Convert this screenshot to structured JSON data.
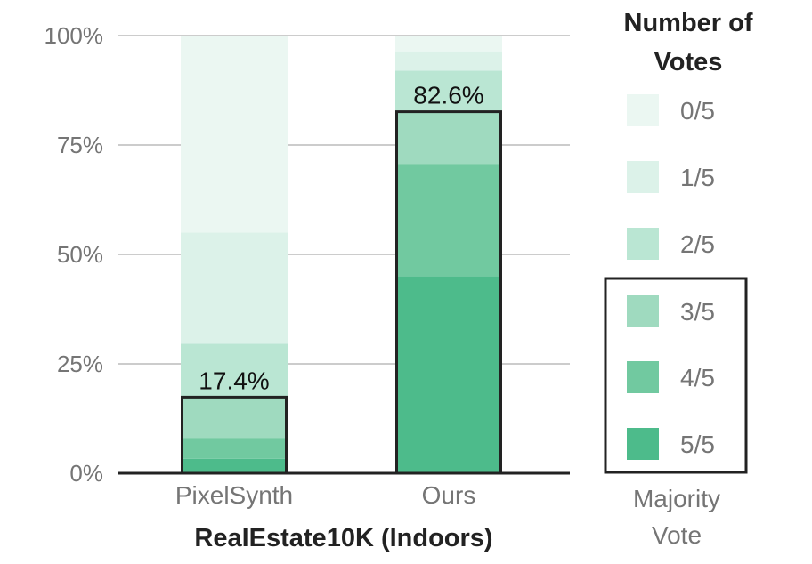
{
  "chart_data": {
    "type": "bar",
    "stacked": true,
    "title": "",
    "xlabel": "RealEstate10K (Indoors)",
    "ylabel": "",
    "ylim": [
      0,
      100
    ],
    "yticks": [
      "0%",
      "25%",
      "50%",
      "75%",
      "100%"
    ],
    "grid": true,
    "categories": [
      "PixelSynth",
      "Ours"
    ],
    "series": [
      {
        "name": "5/5",
        "color": "#4dbb8b",
        "values": [
          3.3,
          45.0
        ]
      },
      {
        "name": "4/5",
        "color": "#71c9a0",
        "values": [
          4.8,
          25.7
        ]
      },
      {
        "name": "3/5",
        "color": "#9fdabf",
        "values": [
          9.3,
          11.9
        ]
      },
      {
        "name": "2/5",
        "color": "#bae6d3",
        "values": [
          12.2,
          9.4
        ]
      },
      {
        "name": "1/5",
        "color": "#dcf2e9",
        "values": [
          25.4,
          4.4
        ]
      },
      {
        "name": "0/5",
        "color": "#ebf7f2",
        "values": [
          45.0,
          3.6
        ]
      }
    ],
    "majority_totals": [
      17.4,
      82.6
    ],
    "majority_labels": [
      "17.4%",
      "82.6%"
    ],
    "legend": {
      "title_lines": [
        "Number of",
        "Votes"
      ],
      "placement": "right",
      "entries": [
        "0/5",
        "1/5",
        "2/5",
        "3/5",
        "4/5",
        "5/5"
      ],
      "majority_caption_lines": [
        "Majority",
        "Vote"
      ]
    }
  }
}
